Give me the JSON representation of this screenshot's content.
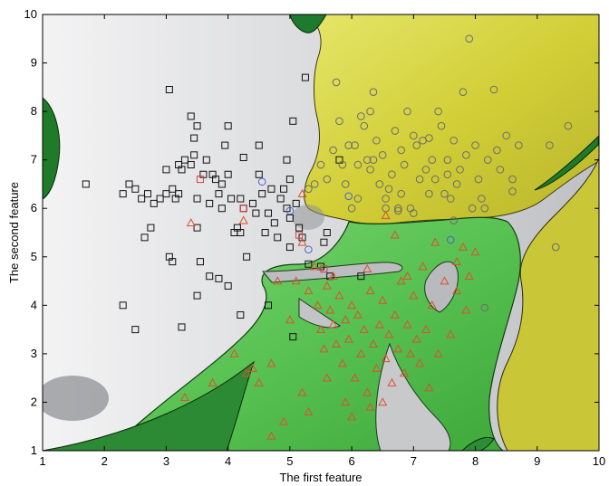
{
  "chart_data": {
    "type": "scatter",
    "title": "",
    "xlabel": "The first feature",
    "ylabel": "The second feature",
    "xlim": [
      1,
      10
    ],
    "ylim": [
      1,
      10
    ],
    "xticks": [
      "1",
      "2",
      "3",
      "4",
      "5",
      "6",
      "7",
      "8",
      "9",
      "10"
    ],
    "yticks": [
      "1",
      "2",
      "3",
      "4",
      "5",
      "6",
      "7",
      "8",
      "9",
      "10"
    ],
    "grid": false,
    "legend": "none",
    "background": "decision regions (gray, yellow, green) with dark green patches",
    "colors": {
      "square_marker": "#111111",
      "circle_marker": "#6b6b6b",
      "triangle_marker": "#d9532a",
      "misclassified_circle": "#4a63c8",
      "misclassified_square": "#d04040",
      "region_gray": "#d7d8da",
      "region_yellow": "#cfcc37",
      "region_green": "#5bc456",
      "region_dark_green": "#1f7a2a"
    },
    "series": [
      {
        "marker": "square",
        "points": [
          [
            1.7,
            6.5
          ],
          [
            2.3,
            6.3
          ],
          [
            2.4,
            6.5
          ],
          [
            2.5,
            6.4
          ],
          [
            2.6,
            6.2
          ],
          [
            2.7,
            6.3
          ],
          [
            2.8,
            6.1
          ],
          [
            2.65,
            5.4
          ],
          [
            2.75,
            5.6
          ],
          [
            2.3,
            4.0
          ],
          [
            2.5,
            3.5
          ],
          [
            2.9,
            6.2
          ],
          [
            3.0,
            6.3
          ],
          [
            3.0,
            6.8
          ],
          [
            3.05,
            5.0
          ],
          [
            3.1,
            4.9
          ],
          [
            3.1,
            6.4
          ],
          [
            3.15,
            6.2
          ],
          [
            3.2,
            6.9
          ],
          [
            3.2,
            6.3
          ],
          [
            3.25,
            6.8
          ],
          [
            3.3,
            7.0
          ],
          [
            3.4,
            7.9
          ],
          [
            3.4,
            6.9
          ],
          [
            3.45,
            7.1
          ],
          [
            3.5,
            7.7
          ],
          [
            3.5,
            6.2
          ],
          [
            3.5,
            5.6
          ],
          [
            3.55,
            4.9
          ],
          [
            3.5,
            4.2
          ],
          [
            3.6,
            6.7
          ],
          [
            3.65,
            7.0
          ],
          [
            3.7,
            6.1
          ],
          [
            3.75,
            6.7
          ],
          [
            3.8,
            6.6
          ],
          [
            3.85,
            6.3
          ],
          [
            3.9,
            6.0
          ],
          [
            3.9,
            6.5
          ],
          [
            4.0,
            7.7
          ],
          [
            4.0,
            6.7
          ],
          [
            4.05,
            6.2
          ],
          [
            4.1,
            5.5
          ],
          [
            4.15,
            5.6
          ],
          [
            4.2,
            6.2
          ],
          [
            4.25,
            6.0
          ],
          [
            4.2,
            5.5
          ],
          [
            4.3,
            5.0
          ],
          [
            4.4,
            6.1
          ],
          [
            4.45,
            5.9
          ],
          [
            4.5,
            7.3
          ],
          [
            4.5,
            6.7
          ],
          [
            4.6,
            5.5
          ],
          [
            4.65,
            5.9
          ],
          [
            4.7,
            6.4
          ],
          [
            4.75,
            5.7
          ],
          [
            4.8,
            5.4
          ],
          [
            4.85,
            6.2
          ],
          [
            4.9,
            6.4
          ],
          [
            4.95,
            6.0
          ],
          [
            5.0,
            5.8
          ],
          [
            5.0,
            6.6
          ],
          [
            5.05,
            7.8
          ],
          [
            5.1,
            6.1
          ],
          [
            5.15,
            5.6
          ],
          [
            5.2,
            5.4
          ],
          [
            5.25,
            8.7
          ],
          [
            5.3,
            4.85
          ],
          [
            5.5,
            4.8
          ],
          [
            5.55,
            5.3
          ],
          [
            5.6,
            5.5
          ],
          [
            5.8,
            7.0
          ],
          [
            6.15,
            4.6
          ],
          [
            3.05,
            8.45
          ],
          [
            3.7,
            4.6
          ],
          [
            3.85,
            4.55
          ],
          [
            4.0,
            4.4
          ],
          [
            4.2,
            3.8
          ],
          [
            4.65,
            4.0
          ],
          [
            5.05,
            3.35
          ],
          [
            3.25,
            3.55
          ],
          [
            5.65,
            4.6
          ],
          [
            5.0,
            5.2
          ],
          [
            4.55,
            6.3
          ],
          [
            3.45,
            7.45
          ],
          [
            3.95,
            7.3
          ],
          [
            4.25,
            7.05
          ],
          [
            4.95,
            7.0
          ]
        ]
      },
      {
        "marker": "circle",
        "points": [
          [
            5.3,
            6.4
          ],
          [
            5.4,
            6.5
          ],
          [
            5.5,
            6.9
          ],
          [
            5.6,
            6.6
          ],
          [
            5.7,
            7.2
          ],
          [
            5.8,
            7.8
          ],
          [
            5.85,
            6.9
          ],
          [
            5.9,
            6.5
          ],
          [
            6.0,
            6.0
          ],
          [
            6.05,
            7.3
          ],
          [
            6.1,
            6.2
          ],
          [
            6.15,
            7.9
          ],
          [
            6.2,
            7.7
          ],
          [
            6.25,
            7.0
          ],
          [
            6.3,
            6.8
          ],
          [
            6.35,
            8.4
          ],
          [
            6.4,
            7.4
          ],
          [
            6.45,
            6.5
          ],
          [
            6.5,
            7.1
          ],
          [
            6.55,
            6.2
          ],
          [
            6.6,
            6.4
          ],
          [
            6.65,
            6.7
          ],
          [
            6.7,
            7.6
          ],
          [
            6.75,
            6.0
          ],
          [
            6.8,
            6.3
          ],
          [
            6.85,
            6.9
          ],
          [
            6.9,
            8.0
          ],
          [
            6.95,
            6.0
          ],
          [
            7.0,
            7.5
          ],
          [
            7.05,
            7.3
          ],
          [
            7.1,
            6.6
          ],
          [
            7.15,
            7.4
          ],
          [
            7.2,
            6.8
          ],
          [
            7.25,
            6.3
          ],
          [
            7.3,
            7.0
          ],
          [
            7.35,
            6.6
          ],
          [
            7.4,
            8.0
          ],
          [
            7.45,
            7.7
          ],
          [
            7.5,
            6.3
          ],
          [
            7.55,
            7.0
          ],
          [
            7.6,
            6.2
          ],
          [
            7.65,
            7.4
          ],
          [
            7.7,
            6.5
          ],
          [
            7.75,
            6.8
          ],
          [
            7.8,
            8.4
          ],
          [
            7.85,
            7.1
          ],
          [
            7.9,
            9.5
          ],
          [
            7.95,
            6.0
          ],
          [
            8.0,
            7.3
          ],
          [
            8.05,
            6.6
          ],
          [
            8.1,
            6.2
          ],
          [
            8.15,
            6.0
          ],
          [
            8.2,
            7.0
          ],
          [
            8.3,
            8.45
          ],
          [
            8.35,
            7.2
          ],
          [
            8.4,
            6.8
          ],
          [
            8.5,
            7.5
          ],
          [
            8.6,
            6.6
          ],
          [
            8.7,
            7.3
          ],
          [
            9.2,
            7.3
          ],
          [
            9.5,
            7.7
          ],
          [
            9.3,
            5.2
          ],
          [
            8.15,
            3.95
          ],
          [
            6.3,
            8.0
          ],
          [
            6.35,
            7.0
          ],
          [
            6.55,
            6.0
          ],
          [
            6.75,
            5.95
          ],
          [
            7.0,
            5.9
          ],
          [
            5.75,
            8.6
          ],
          [
            6.1,
            6.9
          ],
          [
            5.95,
            7.3
          ],
          [
            6.8,
            7.2
          ],
          [
            7.25,
            7.45
          ],
          [
            7.55,
            6.7
          ],
          [
            8.6,
            6.35
          ],
          [
            7.65,
            5.75
          ]
        ]
      },
      {
        "marker": "triangle",
        "points": [
          [
            5.1,
            4.5
          ],
          [
            5.3,
            4.3
          ],
          [
            5.4,
            4.8
          ],
          [
            5.45,
            4.0
          ],
          [
            5.5,
            3.5
          ],
          [
            5.55,
            3.1
          ],
          [
            5.6,
            4.4
          ],
          [
            5.65,
            3.9
          ],
          [
            5.7,
            3.6
          ],
          [
            5.75,
            3.2
          ],
          [
            5.8,
            4.2
          ],
          [
            5.85,
            2.8
          ],
          [
            5.9,
            3.7
          ],
          [
            5.95,
            3.3
          ],
          [
            6.0,
            4.0
          ],
          [
            6.05,
            2.5
          ],
          [
            6.1,
            3.8
          ],
          [
            6.15,
            3.0
          ],
          [
            6.2,
            3.5
          ],
          [
            6.25,
            2.2
          ],
          [
            6.3,
            4.3
          ],
          [
            6.35,
            3.2
          ],
          [
            6.4,
            2.7
          ],
          [
            6.45,
            3.6
          ],
          [
            6.5,
            4.1
          ],
          [
            6.55,
            2.9
          ],
          [
            6.6,
            3.4
          ],
          [
            6.65,
            2.4
          ],
          [
            6.7,
            3.8
          ],
          [
            6.75,
            3.1
          ],
          [
            6.8,
            4.5
          ],
          [
            6.85,
            2.6
          ],
          [
            6.9,
            3.6
          ],
          [
            6.95,
            3.0
          ],
          [
            7.0,
            4.2
          ],
          [
            7.05,
            3.3
          ],
          [
            7.1,
            2.8
          ],
          [
            7.15,
            4.8
          ],
          [
            7.2,
            3.5
          ],
          [
            7.25,
            2.3
          ],
          [
            7.3,
            4.0
          ],
          [
            7.4,
            3.0
          ],
          [
            7.5,
            4.5
          ],
          [
            7.6,
            3.4
          ],
          [
            7.7,
            4.9
          ],
          [
            7.8,
            5.2
          ],
          [
            7.85,
            3.9
          ],
          [
            7.9,
            4.6
          ],
          [
            8.0,
            5.1
          ],
          [
            4.4,
            2.7
          ],
          [
            4.3,
            2.6
          ],
          [
            4.5,
            2.4
          ],
          [
            4.7,
            2.8
          ],
          [
            4.8,
            4.5
          ],
          [
            5.0,
            3.7
          ],
          [
            5.2,
            2.2
          ],
          [
            5.3,
            1.8
          ],
          [
            4.9,
            1.6
          ],
          [
            4.7,
            1.3
          ],
          [
            4.1,
            3.0
          ],
          [
            3.3,
            2.1
          ],
          [
            3.75,
            2.4
          ],
          [
            6.0,
            1.7
          ],
          [
            6.3,
            1.9
          ],
          [
            6.5,
            2.0
          ],
          [
            5.9,
            2.0
          ],
          [
            5.6,
            2.5
          ],
          [
            6.55,
            5.85
          ],
          [
            5.2,
            5.3
          ],
          [
            5.7,
            4.6
          ],
          [
            6.25,
            4.75
          ],
          [
            6.7,
            5.45
          ],
          [
            7.35,
            5.3
          ],
          [
            7.7,
            4.3
          ],
          [
            6.9,
            4.6
          ]
        ]
      }
    ],
    "misclassified": {
      "circles": [
        [
          4.55,
          6.55
        ],
        [
          5.0,
          5.95
        ],
        [
          5.3,
          5.15
        ],
        [
          5.95,
          6.25
        ],
        [
          7.6,
          5.35
        ]
      ],
      "squares": [
        [
          3.55,
          6.6
        ],
        [
          4.25,
          6.0
        ],
        [
          5.15,
          5.45
        ],
        [
          5.55,
          4.75
        ]
      ],
      "triangles": [
        [
          3.4,
          5.7
        ],
        [
          4.25,
          5.75
        ],
        [
          5.2,
          6.3
        ]
      ]
    }
  }
}
